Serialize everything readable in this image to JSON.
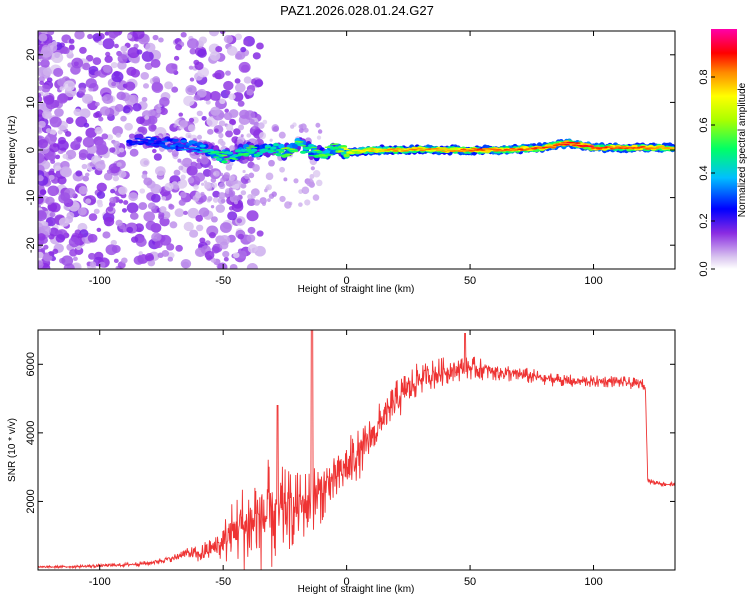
{
  "colors": {
    "snr_line": "#ee3333",
    "frame": "#000000",
    "colormap_stops": [
      "#d9c4ef",
      "#8a2be2",
      "#0000ff",
      "#00bfff",
      "#00ff66",
      "#ffff00",
      "#ff8800",
      "#ff0000",
      "#ff00aa"
    ]
  },
  "chart_data": [
    {
      "type": "heatmap",
      "title": "PAZ1.2026.028.01.24.G27",
      "xlabel": "Height of straight line (km)",
      "ylabel": "Frequency (Hz)",
      "xlim": [
        -125,
        133
      ],
      "ylim": [
        -25,
        25
      ],
      "xticks": [
        -100,
        -50,
        0,
        50,
        100
      ],
      "xtick_labels": [
        "-100",
        "-50",
        "0",
        "50",
        "100"
      ],
      "yticks": [
        -20,
        -10,
        0,
        10,
        20
      ],
      "ytick_labels": [
        "-20",
        "-10",
        "0",
        "10",
        "20"
      ],
      "colorbar": {
        "label": "Normalized spectral amplitude",
        "range": [
          0,
          1
        ],
        "ticks": [
          0,
          0.2,
          0.4,
          0.6,
          0.8
        ],
        "tick_labels": [
          "0.0",
          "0.2",
          "0.4",
          "0.6",
          "0.8"
        ]
      },
      "ridge": {
        "description_heights_km": [
          -85,
          -75,
          -65,
          -60,
          -55,
          -50,
          -45,
          -40,
          -35,
          -30,
          -25,
          -20,
          -15,
          -10,
          -5,
          0,
          10,
          20,
          30,
          40,
          50,
          60,
          70,
          80,
          90,
          100,
          110,
          120,
          130
        ],
        "frequency_hz": [
          2,
          1.5,
          1,
          0.5,
          -0.5,
          -1.5,
          -1,
          0,
          -0.5,
          0.5,
          -0.5,
          1,
          0,
          -1,
          0.5,
          -0.5,
          0,
          0,
          0.2,
          0,
          0,
          0,
          0.2,
          0.5,
          1.5,
          0.5,
          0.5,
          0.5,
          0.5
        ],
        "amplitude": [
          0.25,
          0.3,
          0.35,
          0.4,
          0.5,
          0.55,
          0.5,
          0.55,
          0.45,
          0.5,
          0.6,
          0.55,
          0.5,
          0.6,
          0.55,
          0.7,
          0.75,
          0.8,
          0.8,
          0.8,
          0.85,
          0.85,
          0.85,
          0.85,
          0.9,
          0.9,
          0.85,
          0.85,
          0.8
        ]
      }
    },
    {
      "type": "line",
      "title": "",
      "xlabel": "Height of straight line (km)",
      "ylabel": "SNR (10 * v/v)",
      "xlim": [
        -125,
        133
      ],
      "ylim": [
        0,
        7000
      ],
      "xticks": [
        -100,
        -50,
        0,
        50,
        100
      ],
      "xtick_labels": [
        "-100",
        "-50",
        "0",
        "50",
        "100"
      ],
      "yticks": [
        2000,
        4000,
        6000
      ],
      "ytick_labels": [
        "2000",
        "4000",
        "6000"
      ],
      "series": [
        {
          "name": "SNR",
          "x": [
            -125,
            -110,
            -100,
            -90,
            -80,
            -70,
            -65,
            -60,
            -55,
            -50,
            -45,
            -40,
            -35,
            -30,
            -25,
            -20,
            -15,
            -10,
            -5,
            0,
            5,
            10,
            15,
            20,
            25,
            30,
            40,
            50,
            60,
            70,
            80,
            90,
            100,
            110,
            120,
            121,
            122,
            125,
            130,
            133
          ],
          "y": [
            80,
            100,
            120,
            150,
            200,
            350,
            500,
            450,
            600,
            800,
            1200,
            1300,
            1500,
            1600,
            1700,
            1800,
            2000,
            2300,
            2700,
            3000,
            3400,
            3900,
            4400,
            4900,
            5300,
            5600,
            5800,
            5900,
            5800,
            5700,
            5600,
            5500,
            5500,
            5500,
            5400,
            5300,
            2600,
            2550,
            2500,
            2500
          ],
          "noise_amplitude": [
            50,
            60,
            70,
            80,
            100,
            150,
            250,
            350,
            500,
            900,
            1500,
            2000,
            2300,
            2400,
            1800,
            1500,
            1400,
            1300,
            1200,
            1200,
            1100,
            1000,
            900,
            900,
            800,
            700,
            600,
            500,
            400,
            350,
            300,
            300,
            250,
            250,
            250,
            200,
            100,
            100,
            100,
            100
          ],
          "spikes": [
            {
              "x": -28,
              "y": 4800
            },
            {
              "x": -14,
              "y": 7000
            },
            {
              "x": 48,
              "y": 6900
            }
          ]
        }
      ]
    }
  ]
}
